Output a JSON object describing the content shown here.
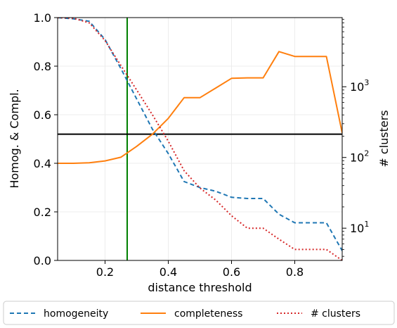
{
  "chart_data": {
    "type": "line",
    "xlabel": "distance threshold",
    "ylabel": "Homog. & Compl.",
    "y2label": "# clusters",
    "xlim": [
      0.05,
      0.95
    ],
    "ylim": [
      0.0,
      1.0
    ],
    "y2lim": [
      3.5,
      9500
    ],
    "y2scale": "log",
    "grid": true,
    "legend_position": "below",
    "x_ticks": [
      {
        "value": 0.2,
        "label": "0.2"
      },
      {
        "value": 0.4,
        "label": "0.4"
      },
      {
        "value": 0.6,
        "label": "0.6"
      },
      {
        "value": 0.8,
        "label": "0.8"
      }
    ],
    "y_ticks": [
      {
        "value": 0.0,
        "label": "0.0"
      },
      {
        "value": 0.2,
        "label": "0.2"
      },
      {
        "value": 0.4,
        "label": "0.4"
      },
      {
        "value": 0.6,
        "label": "0.6"
      },
      {
        "value": 0.8,
        "label": "0.8"
      },
      {
        "value": 1.0,
        "label": "1.0"
      }
    ],
    "y2_ticks": [
      {
        "value": 10,
        "base": "10",
        "exp": "1"
      },
      {
        "value": 100,
        "base": "10",
        "exp": "2"
      },
      {
        "value": 1000,
        "base": "10",
        "exp": "3"
      }
    ],
    "x": [
      0.05,
      0.1,
      0.15,
      0.2,
      0.25,
      0.3,
      0.35,
      0.4,
      0.45,
      0.5,
      0.55,
      0.6,
      0.65,
      0.7,
      0.75,
      0.8,
      0.85,
      0.9,
      0.95
    ],
    "series": [
      {
        "name": "homogeneity",
        "axis": "left",
        "color": "#1f77b4",
        "style": "dashed",
        "values": [
          1.0,
          0.995,
          0.985,
          0.91,
          0.79,
          0.665,
          0.54,
          0.44,
          0.325,
          0.3,
          0.285,
          0.26,
          0.255,
          0.255,
          0.19,
          0.155,
          0.155,
          0.155,
          0.04
        ]
      },
      {
        "name": "completeness",
        "axis": "left",
        "color": "#ff7f0e",
        "style": "solid",
        "values": [
          0.4,
          0.4,
          0.402,
          0.41,
          0.425,
          0.47,
          0.52,
          0.585,
          0.67,
          0.67,
          0.71,
          0.75,
          0.752,
          0.752,
          0.86,
          0.84,
          0.84,
          0.84,
          0.525
        ]
      },
      {
        "name": "# clusters",
        "axis": "right",
        "color": "#d62728",
        "style": "dotted",
        "values": [
          9500,
          9300,
          8000,
          4500,
          2000,
          900,
          400,
          170,
          65,
          37,
          25,
          15,
          10,
          10,
          7,
          5,
          5,
          5,
          3.5
        ]
      }
    ],
    "reference_lines": [
      {
        "orientation": "vertical",
        "axis": "x",
        "value": 0.27,
        "color": "#008000"
      },
      {
        "orientation": "horizontal",
        "axis": "left",
        "value": 0.52,
        "color": "#000000"
      }
    ]
  }
}
